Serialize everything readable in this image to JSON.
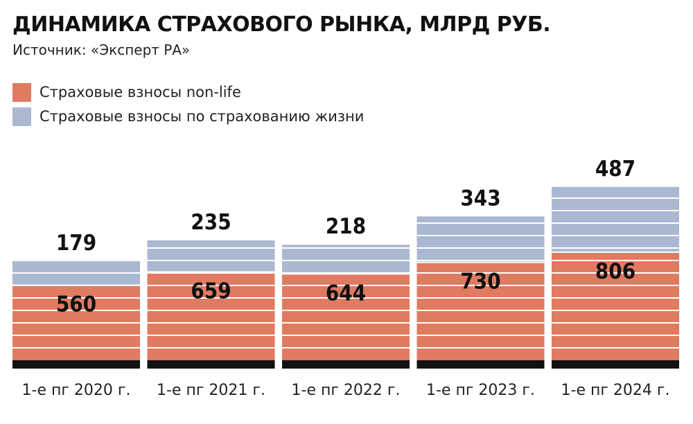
{
  "chart_data": {
    "type": "bar",
    "stacked": true,
    "title": "ДИНАМИКА СТРАХОВОГО РЫНКА, МЛРД РУБ.",
    "subtitle": "Источник: «Эксперт РА»",
    "categories": [
      "1-е пг 2020 г.",
      "1-е пг 2021 г.",
      "1-е пг 2022 г.",
      "1-е пг 2023 г.",
      "1-е пг 2024 г."
    ],
    "series": [
      {
        "name": "Страховые взносы non-life",
        "values": [
          560,
          659,
          644,
          730,
          806
        ],
        "color": "#e07b61"
      },
      {
        "name": "Страховые взносы по страхованию жизни",
        "values": [
          179,
          235,
          218,
          343,
          487
        ],
        "color": "#aab8d2"
      }
    ],
    "legend_position": "top-left",
    "gridlines": "horizontal white stripes",
    "baseline_color": "#111111"
  }
}
